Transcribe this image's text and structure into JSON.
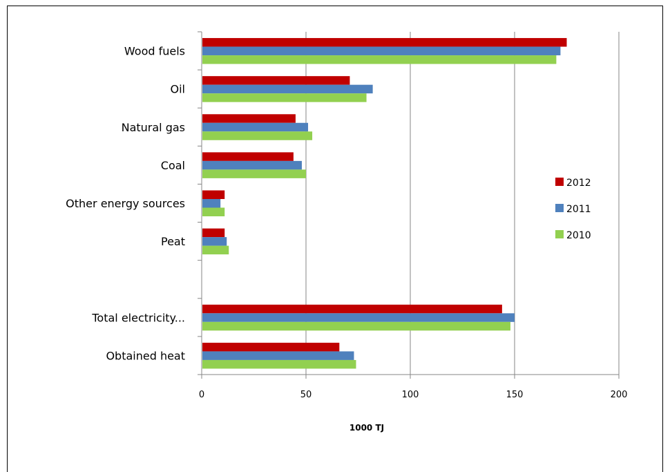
{
  "chart_data": {
    "type": "bar",
    "orientation": "horizontal",
    "categories": [
      "Wood fuels",
      "Oil",
      "Natural gas",
      "Coal",
      "Other energy sources",
      "Peat",
      "",
      "Total electricity...",
      "Obtained heat"
    ],
    "series": [
      {
        "name": "2012",
        "color": "#c00000",
        "values": [
          175,
          71,
          45,
          44,
          11,
          11,
          null,
          144,
          66
        ]
      },
      {
        "name": "2011",
        "color": "#4f81bd",
        "values": [
          172,
          82,
          51,
          48,
          9,
          12,
          null,
          150,
          73
        ]
      },
      {
        "name": "2010",
        "color": "#92d050",
        "values": [
          170,
          79,
          53,
          50,
          11,
          13,
          null,
          148,
          74
        ]
      }
    ],
    "xticks": [
      "0",
      "50",
      "100",
      "150",
      "200"
    ],
    "xlim": [
      0,
      200
    ],
    "xlabel": "1000 TJ",
    "ylabel": "",
    "title": "",
    "grid": "vertical",
    "legend_position": "right"
  }
}
